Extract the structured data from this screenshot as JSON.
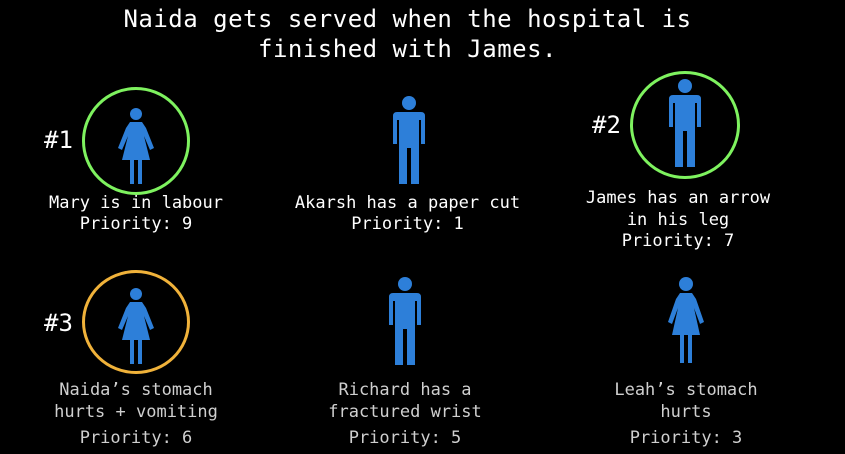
{
  "title": {
    "line1": "Naida gets served when the hospital is",
    "line2": "finished with James."
  },
  "colors": {
    "background": "#000000",
    "figure": "#2d7fd9",
    "selected_ring": "#7ef25f",
    "next_ring": "#f0b23a"
  },
  "patients": [
    {
      "name_line1": "Mary is in labour",
      "name_line2": "",
      "priority": "Priority: 9",
      "rank": "#1",
      "icon": "woman-icon",
      "ring": "green"
    },
    {
      "name_line1": "Akarsh has a paper cut",
      "name_line2": "",
      "priority": "Priority: 1",
      "rank": "",
      "icon": "man-icon",
      "ring": "none"
    },
    {
      "name_line1": "James has an arrow",
      "name_line2": "in his leg",
      "priority": "Priority: 7",
      "rank": "#2",
      "icon": "man-icon",
      "ring": "green"
    },
    {
      "name_line1": "Naida’s stomach",
      "name_line2": "hurts + vomiting",
      "priority": "Priority: 6",
      "rank": "#3",
      "icon": "woman-icon",
      "ring": "orange"
    },
    {
      "name_line1": "Richard has a",
      "name_line2": "fractured wrist",
      "priority": "Priority: 5",
      "rank": "",
      "icon": "man-icon",
      "ring": "none"
    },
    {
      "name_line1": "Leah’s stomach",
      "name_line2": "hurts",
      "priority": "Priority: 3",
      "rank": "",
      "icon": "woman-icon",
      "ring": "none"
    }
  ]
}
